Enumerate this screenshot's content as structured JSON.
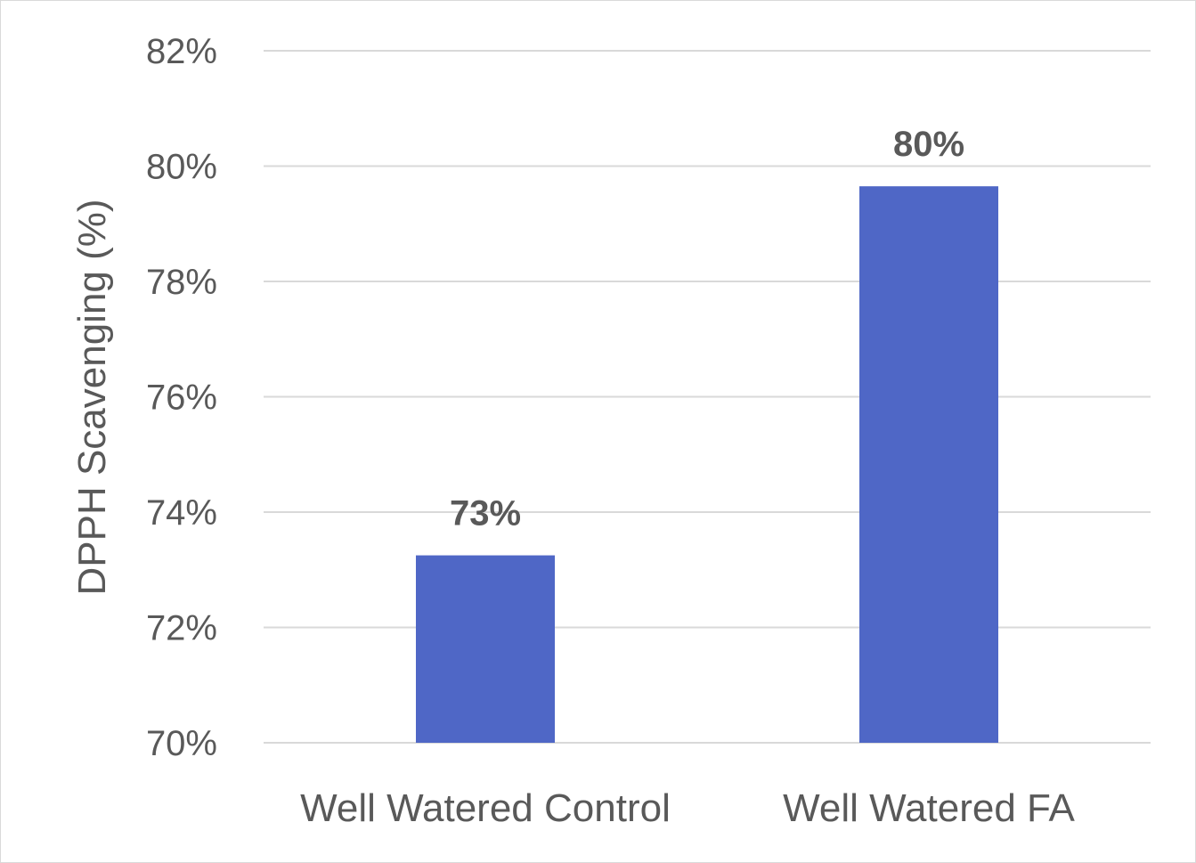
{
  "chart_data": {
    "type": "bar",
    "title": "",
    "xlabel": "",
    "ylabel": "DPPH Scavenging (%)",
    "categories": [
      "Well Watered Control",
      "Well Watered FA"
    ],
    "values": [
      73.25,
      79.65
    ],
    "data_labels": [
      "73%",
      "80%"
    ],
    "ylim": [
      70,
      82
    ],
    "yticks": [
      70,
      72,
      74,
      76,
      78,
      80,
      82
    ],
    "ytick_labels": [
      "70%",
      "72%",
      "74%",
      "76%",
      "78%",
      "80%",
      "82%"
    ],
    "grid": true,
    "legend": "none",
    "bar_color": "#4f67c6"
  }
}
